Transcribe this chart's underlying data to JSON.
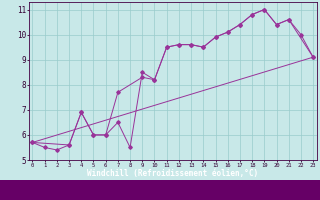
{
  "bg_color": "#c8e8e8",
  "line_color": "#993399",
  "grid_color": "#99cccc",
  "xlim": [
    -0.3,
    23.3
  ],
  "ylim": [
    5.0,
    11.3
  ],
  "xticks": [
    0,
    1,
    2,
    3,
    4,
    5,
    6,
    7,
    8,
    9,
    10,
    11,
    12,
    13,
    14,
    15,
    16,
    17,
    18,
    19,
    20,
    21,
    22,
    23
  ],
  "yticks": [
    5,
    6,
    7,
    8,
    9,
    10,
    11
  ],
  "xlabel": "Windchill (Refroidissement éolien,°C)",
  "line1_x": [
    0,
    1,
    2,
    3,
    4,
    5,
    6,
    7,
    8,
    9,
    10,
    11,
    12,
    13,
    14,
    15,
    16,
    17,
    18,
    19,
    20,
    21,
    22,
    23
  ],
  "line1_y": [
    5.7,
    5.5,
    5.4,
    5.6,
    6.9,
    6.0,
    6.0,
    6.5,
    5.5,
    8.5,
    8.2,
    9.5,
    9.6,
    9.6,
    9.5,
    9.9,
    10.1,
    10.4,
    10.8,
    11.0,
    10.4,
    10.6,
    10.0,
    9.1
  ],
  "line2_x": [
    0,
    3,
    4,
    5,
    6,
    7,
    9,
    10,
    11,
    12,
    13,
    14,
    15,
    16,
    17,
    18,
    19,
    20,
    21,
    23
  ],
  "line2_y": [
    5.7,
    5.6,
    6.9,
    6.0,
    6.0,
    7.7,
    8.3,
    8.2,
    9.5,
    9.6,
    9.6,
    9.5,
    9.9,
    10.1,
    10.4,
    10.8,
    11.0,
    10.4,
    10.6,
    9.1
  ],
  "line3_x": [
    0,
    23
  ],
  "line3_y": [
    5.7,
    9.1
  ]
}
